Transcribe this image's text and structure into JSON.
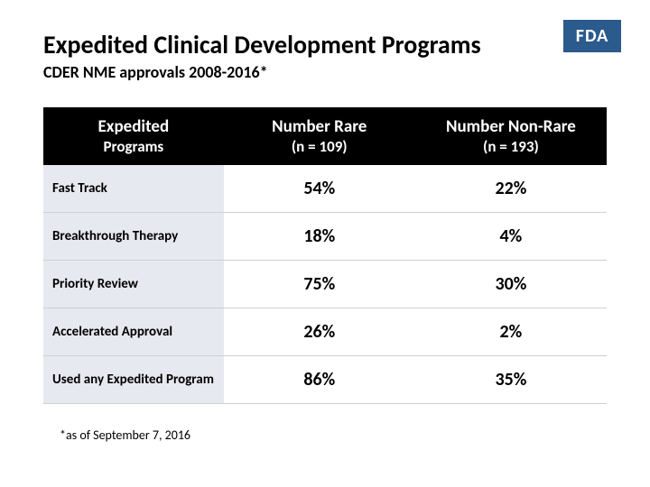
{
  "logo_text": "FDA",
  "title": "Expedited Clinical Development Programs",
  "subtitle": "CDER NME approvals 2008-2016*",
  "footnote": "*as of September 7, 2016",
  "table": {
    "header_bg": "#000000",
    "header_fg": "#ffffff",
    "label_bg": "#e6e9ef",
    "border_color": "#cfcfcf",
    "columns": [
      {
        "line1": "Expedited",
        "line2": "Programs"
      },
      {
        "line1": "Number Rare",
        "line2": "(n = 109)"
      },
      {
        "line1": "Number  Non-Rare",
        "line2": "(n = 193)"
      }
    ],
    "rows": [
      {
        "label": "Fast Track",
        "rare": "54%",
        "nonrare": "22%"
      },
      {
        "label": "Breakthrough Therapy",
        "rare": "18%",
        "nonrare": "4%"
      },
      {
        "label": "Priority Review",
        "rare": "75%",
        "nonrare": "30%"
      },
      {
        "label": "Accelerated Approval",
        "rare": "26%",
        "nonrare": "2%"
      },
      {
        "label": "Used any Expedited Program",
        "rare": "86%",
        "nonrare": "35%"
      }
    ]
  },
  "logo_bg": "#2b5a8c"
}
